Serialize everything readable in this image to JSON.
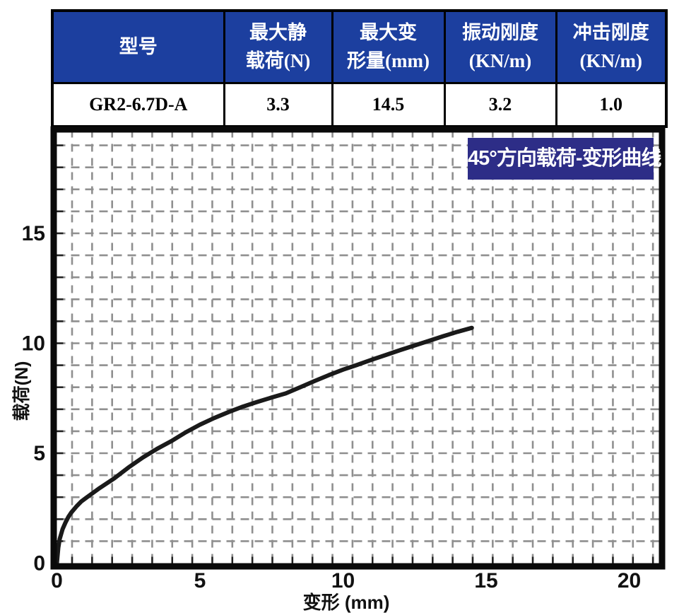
{
  "table": {
    "headers": [
      "型号",
      "最大静\n载荷(N)",
      "最大变\n形量(mm)",
      "振动刚度\n(KN/m)",
      "冲击刚度\n(KN/m)"
    ],
    "row": [
      "GR2-6.7D-A",
      "3.3",
      "14.5",
      "3.2",
      "1.0"
    ]
  },
  "chart": {
    "badge": "45°方向载荷-变形曲线",
    "xlabel": "变形 (mm)",
    "ylabel": "载荷(N)"
  },
  "chart_data": {
    "type": "line",
    "title": "45°方向载荷-变形曲线",
    "xlabel": "变形 (mm)",
    "ylabel": "载荷(N)",
    "xlim": [
      0,
      21
    ],
    "ylim": [
      0,
      19.6
    ],
    "x_ticks": [
      0,
      5,
      10,
      15,
      20
    ],
    "y_ticks": [
      0,
      5,
      10,
      15
    ],
    "grid": true,
    "legend": "none",
    "series": [
      {
        "name": "45°方向载荷-变形曲线",
        "x": [
          0,
          0.05,
          0.1,
          0.2,
          0.3,
          0.4,
          0.5,
          0.7,
          0.85,
          1,
          1.5,
          2,
          2.5,
          3,
          3.5,
          4,
          4.5,
          5,
          5.5,
          6,
          6.5,
          7,
          7.5,
          8,
          8.5,
          9,
          9.5,
          10,
          10.5,
          11,
          11.5,
          12,
          12.5,
          13,
          13.5,
          14,
          14.5
        ],
        "y": [
          0,
          0.7,
          1.1,
          1.55,
          1.85,
          2.1,
          2.3,
          2.6,
          2.8,
          2.95,
          3.42,
          3.85,
          4.35,
          4.8,
          5.2,
          5.55,
          5.95,
          6.3,
          6.6,
          6.87,
          7.12,
          7.33,
          7.53,
          7.72,
          8.0,
          8.28,
          8.55,
          8.8,
          9.02,
          9.25,
          9.47,
          9.69,
          9.9,
          10.11,
          10.32,
          10.52,
          10.7
        ]
      }
    ]
  },
  "colors": {
    "table_header_bg": "#1c3f9f",
    "table_header_text": "#ffffff",
    "badge_bg": "#2d2d87",
    "badge_text": "#ffffff",
    "grid_gray": "#8f8f8f",
    "curve_black": "#1a1a1a",
    "frame_black": "#0a0a0a"
  }
}
